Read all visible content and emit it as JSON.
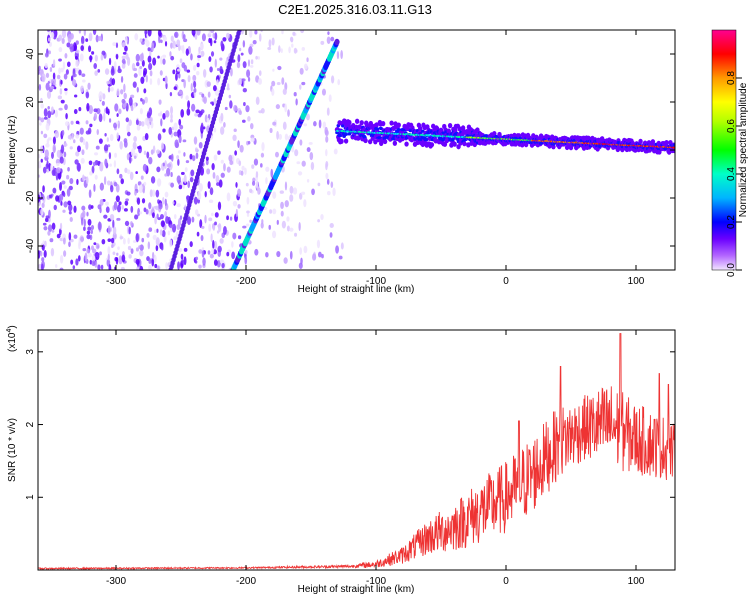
{
  "title": "C2E1.2025.316.03.11.G13",
  "chart_data": [
    {
      "type": "heatmap",
      "name": "spectrogram",
      "xlabel": "Height of straight line (km)",
      "ylabel": "Frequency (Hz)",
      "xlim": [
        -360,
        130
      ],
      "ylim": [
        -50,
        50
      ],
      "x_ticks": [
        -300,
        -200,
        -100,
        0,
        100
      ],
      "x_tick_labels": [
        "-300",
        "-200",
        "-100",
        "0",
        "100"
      ],
      "y_ticks": [
        -40,
        -20,
        0,
        20,
        40
      ],
      "y_tick_labels": [
        "-40",
        "-20",
        "0",
        "20",
        "40"
      ],
      "colorbar": {
        "label": "Normalized spectral amplitude",
        "range": [
          0,
          1
        ],
        "ticks": [
          0.0,
          0.2,
          0.4,
          0.6,
          0.8
        ],
        "tick_labels": [
          "0.0",
          "0.2",
          "0.4",
          "0.6",
          "0.8"
        ],
        "colors": [
          "#ffffff",
          "#d9b3ff",
          "#8000ff",
          "#0000ff",
          "#00c8ff",
          "#00ff80",
          "#c8ff00",
          "#ffcc00",
          "#ff6600",
          "#ff0000",
          "#ff00a0"
        ]
      },
      "features": {
        "diagonal_line": {
          "x": [
            -210,
            -130
          ],
          "y": [
            -50,
            45
          ]
        },
        "secondary_diagonal": {
          "x": [
            -258,
            -205
          ],
          "y": [
            -50,
            50
          ]
        },
        "horizontal_band": {
          "x": [
            -130,
            130
          ],
          "y": [
            8,
            1
          ]
        },
        "noise_extent_x": [
          -360,
          -125
        ]
      }
    },
    {
      "type": "line",
      "name": "snr",
      "xlabel": "Height of straight line (km)",
      "ylabel": "SNR (10 * v/v)",
      "y_multiplier_label": "(x10",
      "y_multiplier_exp": "4",
      "xlim": [
        -360,
        130
      ],
      "ylim": [
        0,
        3.3
      ],
      "x_ticks": [
        -300,
        -200,
        -100,
        0,
        100
      ],
      "x_tick_labels": [
        "-300",
        "-200",
        "-100",
        "0",
        "100"
      ],
      "y_ticks": [
        1,
        2,
        3
      ],
      "y_tick_labels": [
        "1",
        "2",
        "3"
      ],
      "color": "#ee3333",
      "envelope": {
        "x": [
          -360,
          -200,
          -120,
          -100,
          -80,
          -60,
          -40,
          -20,
          0,
          20,
          40,
          60,
          80,
          100,
          120,
          130
        ],
        "y": [
          0.02,
          0.03,
          0.05,
          0.08,
          0.2,
          0.45,
          0.6,
          0.8,
          1.0,
          1.3,
          1.75,
          1.95,
          2.0,
          1.8,
          1.7,
          1.6
        ],
        "amp": [
          0.01,
          0.01,
          0.02,
          0.05,
          0.12,
          0.25,
          0.35,
          0.45,
          0.5,
          0.55,
          0.5,
          0.45,
          0.6,
          0.5,
          0.45,
          0.4
        ]
      },
      "peaks": [
        {
          "x": 88,
          "y": 3.25
        },
        {
          "x": 42,
          "y": 2.8
        },
        {
          "x": 118,
          "y": 2.7
        },
        {
          "x": 125,
          "y": 2.55
        },
        {
          "x": 10,
          "y": 2.05
        }
      ]
    }
  ]
}
